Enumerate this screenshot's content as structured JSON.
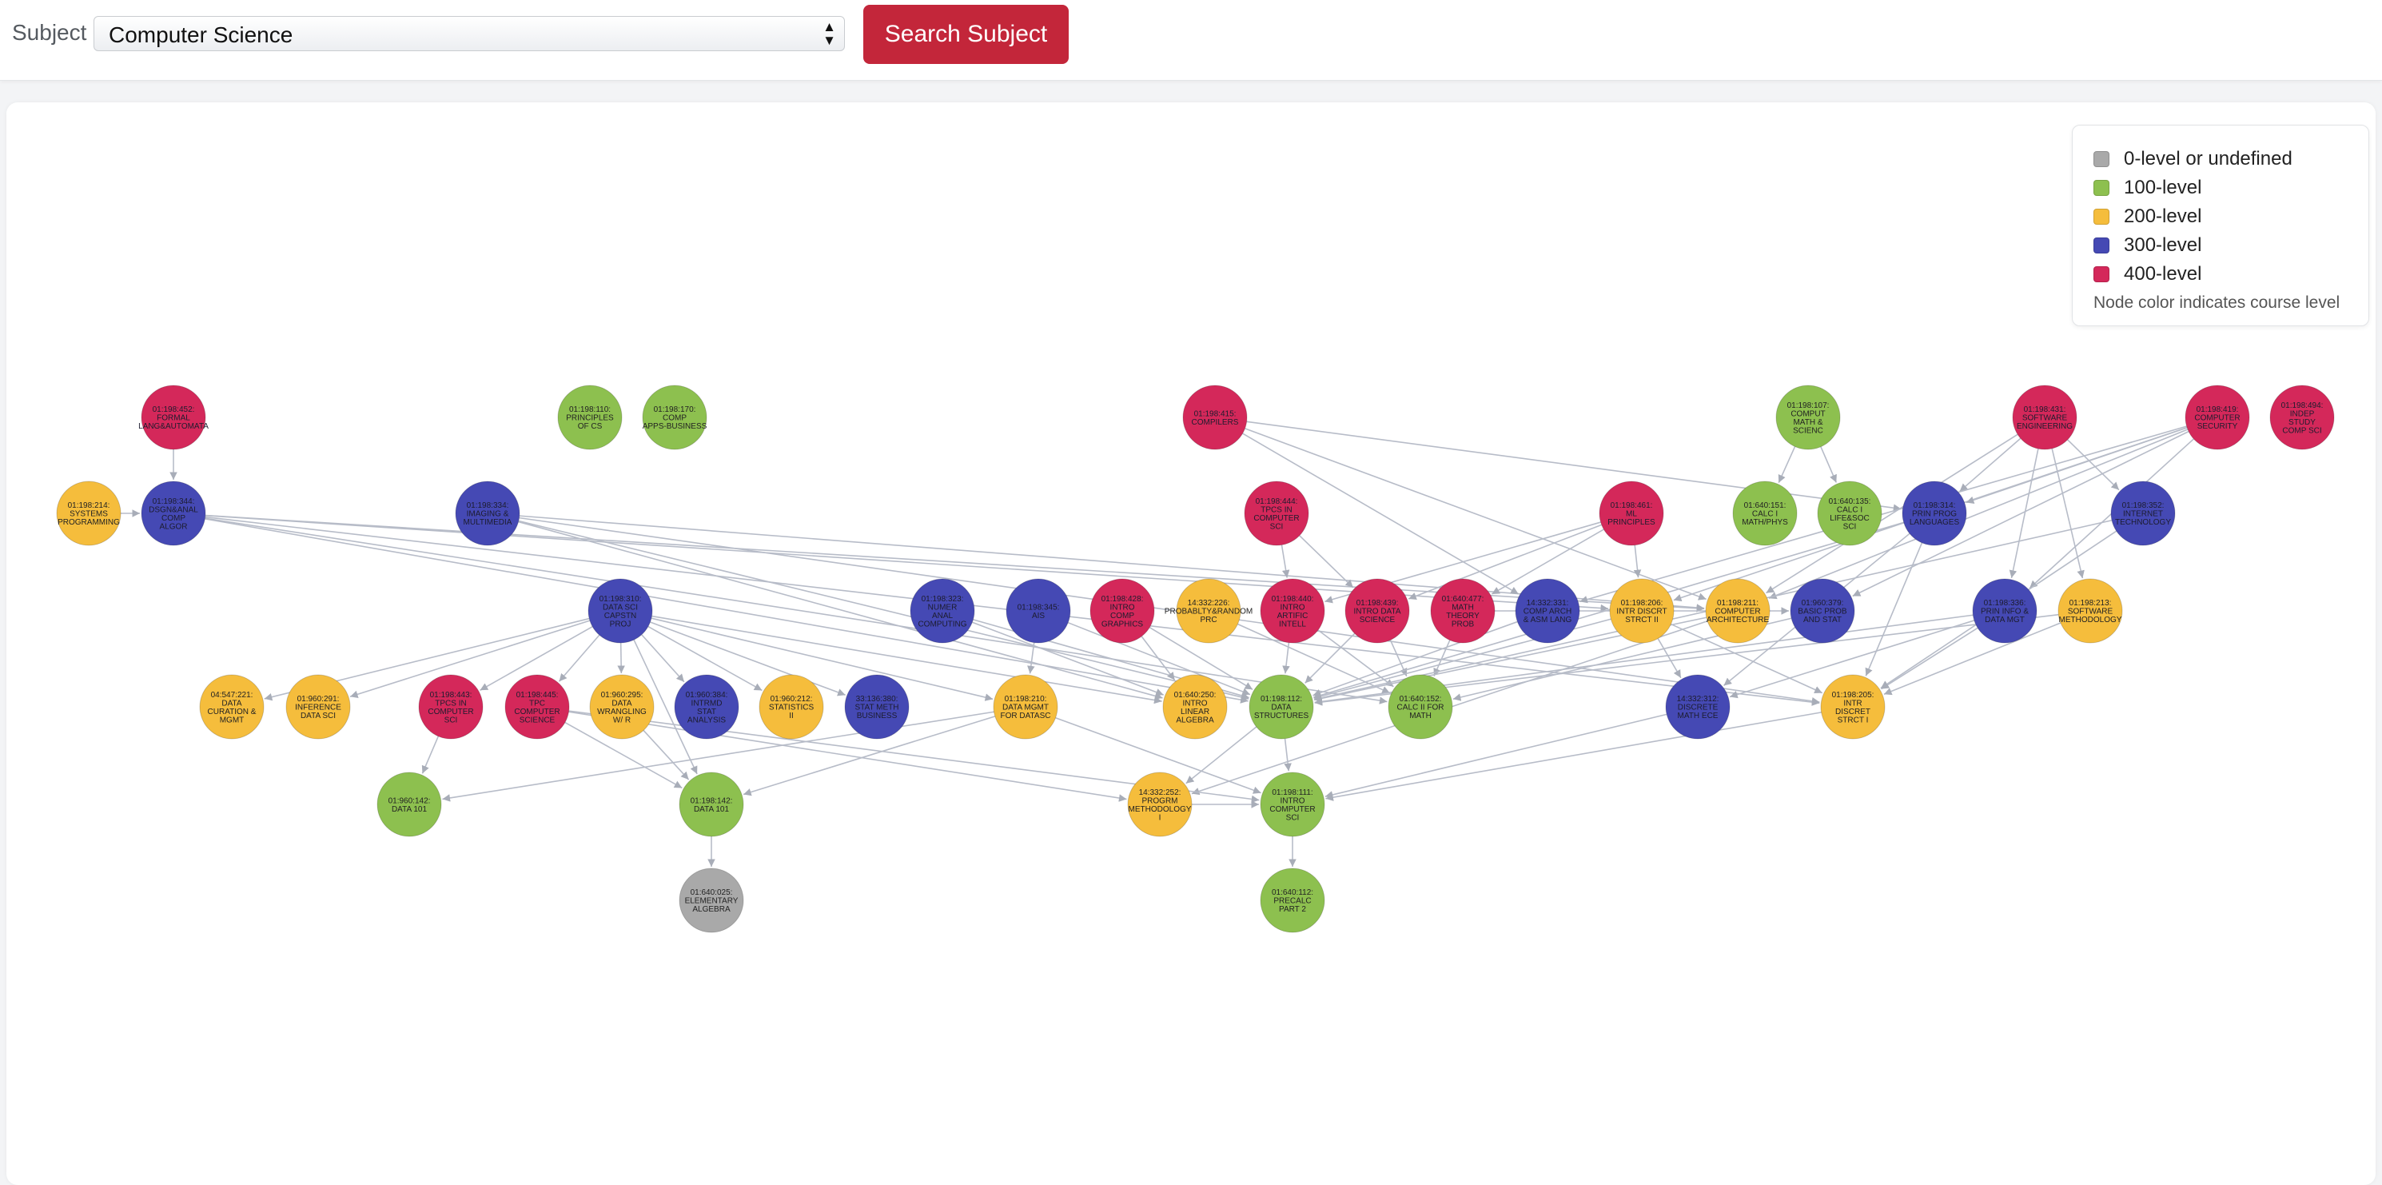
{
  "header": {
    "subject_label": "Subject",
    "subject_value": "Computer Science",
    "search_label": "Search Subject"
  },
  "legend": {
    "items": [
      {
        "label": "0-level or undefined",
        "color": "#a9a9a9"
      },
      {
        "label": "100-level",
        "color": "#8dc04f"
      },
      {
        "label": "200-level",
        "color": "#f5bd3c"
      },
      {
        "label": "300-level",
        "color": "#4549b4"
      },
      {
        "label": "400-level",
        "color": "#d4285a"
      }
    ],
    "note": "Node color indicates course level"
  },
  "graph": {
    "nodes": [
      {
        "id": "198452",
        "level": 4,
        "lines": [
          "01:198:452:",
          "FORMAL",
          "LANG&AUTOMATA"
        ]
      },
      {
        "id": "198110",
        "level": 1,
        "lines": [
          "01:198:110:",
          "PRINCIPLES",
          "OF CS"
        ]
      },
      {
        "id": "198170",
        "level": 1,
        "lines": [
          "01:198:170:",
          "COMP",
          "APPS-BUSINESS"
        ]
      },
      {
        "id": "198415",
        "level": 4,
        "lines": [
          "01:198:415:",
          "COMPILERS"
        ]
      },
      {
        "id": "198107",
        "level": 1,
        "lines": [
          "01:198:107:",
          "COMPUT",
          "MATH &",
          "SCIENC"
        ]
      },
      {
        "id": "198431",
        "level": 4,
        "lines": [
          "01:198:431:",
          "SOFTWARE",
          "ENGINEERING"
        ]
      },
      {
        "id": "198419",
        "level": 4,
        "lines": [
          "01:198:419:",
          "COMPUTER",
          "SECURITY"
        ]
      },
      {
        "id": "198494",
        "level": 4,
        "lines": [
          "01:198:494:",
          "INDEP",
          "STUDY",
          "COMP SCI"
        ]
      },
      {
        "id": "198214",
        "level": 2,
        "lines": [
          "01:198:214:",
          "SYSTEMS",
          "PROGRAMMING"
        ]
      },
      {
        "id": "198344",
        "level": 3,
        "lines": [
          "01:198:344:",
          "DSGN&ANAL",
          "COMP",
          "ALGOR"
        ]
      },
      {
        "id": "198334",
        "level": 3,
        "lines": [
          "01:198:334:",
          "IMAGING &",
          "MULTIMEDIA"
        ]
      },
      {
        "id": "198444",
        "level": 4,
        "lines": [
          "01:198:444:",
          "TPCS IN",
          "COMPUTER",
          "SCI"
        ]
      },
      {
        "id": "198461",
        "level": 4,
        "lines": [
          "01:198:461:",
          "ML",
          "PRINCIPLES"
        ]
      },
      {
        "id": "640151",
        "level": 1,
        "lines": [
          "01:640:151:",
          "CALC I",
          "MATH/PHYS"
        ]
      },
      {
        "id": "640135",
        "level": 1,
        "lines": [
          "01:640:135:",
          "CALC I",
          "LIFE&SOC",
          "SCI"
        ]
      },
      {
        "id": "198314",
        "level": 3,
        "lines": [
          "01:198:314:",
          "PRIN PROG",
          "LANGUAGES"
        ]
      },
      {
        "id": "198352",
        "level": 3,
        "lines": [
          "01:198:352:",
          "INTERNET",
          "TECHNOLOGY"
        ]
      },
      {
        "id": "198310",
        "level": 3,
        "lines": [
          "01:198:310:",
          "DATA SCI",
          "CAPSTN",
          "PROJ"
        ]
      },
      {
        "id": "198323",
        "level": 3,
        "lines": [
          "01:198:323:",
          "NUMER",
          "ANAL",
          "COMPUTING"
        ]
      },
      {
        "id": "198345",
        "level": 3,
        "lines": [
          "01:198:345:",
          "AIS"
        ]
      },
      {
        "id": "198428",
        "level": 4,
        "lines": [
          "01:198:428:",
          "INTRO",
          "COMP",
          "GRAPHICS"
        ]
      },
      {
        "id": "332226",
        "level": 2,
        "lines": [
          "14:332:226:",
          "PROBABLTY&RANDOM",
          "PRC"
        ]
      },
      {
        "id": "198440",
        "level": 4,
        "lines": [
          "01:198:440:",
          "INTRO",
          "ARTIFIC",
          "INTELL"
        ]
      },
      {
        "id": "198439",
        "level": 4,
        "lines": [
          "01:198:439:",
          "INTRO DATA",
          "SCIENCE"
        ]
      },
      {
        "id": "640477",
        "level": 4,
        "lines": [
          "01:640:477:",
          "MATH",
          "THEORY",
          "PROB"
        ]
      },
      {
        "id": "332331",
        "level": 3,
        "lines": [
          "14:332:331:",
          "COMP ARCH",
          "& ASM LANG"
        ]
      },
      {
        "id": "198206",
        "level": 2,
        "lines": [
          "01:198:206:",
          "INTR DISCRT",
          "STRCT II"
        ]
      },
      {
        "id": "198211",
        "level": 2,
        "lines": [
          "01:198:211:",
          "COMPUTER",
          "ARCHITECTURE"
        ]
      },
      {
        "id": "960379",
        "level": 3,
        "lines": [
          "01:960:379:",
          "BASIC PROB",
          "AND STAT"
        ]
      },
      {
        "id": "198336",
        "level": 3,
        "lines": [
          "01:198:336:",
          "PRIN INFO &",
          "DATA MGT"
        ]
      },
      {
        "id": "198213",
        "level": 2,
        "lines": [
          "01:198:213:",
          "SOFTWARE",
          "METHODOLOGY"
        ]
      },
      {
        "id": "547221",
        "level": 2,
        "lines": [
          "04:547:221:",
          "DATA",
          "CURATION &",
          "MGMT"
        ]
      },
      {
        "id": "960291",
        "level": 2,
        "lines": [
          "01:960:291:",
          "INFERENCE",
          "DATA SCI"
        ]
      },
      {
        "id": "198443",
        "level": 4,
        "lines": [
          "01:198:443:",
          "TPCS IN",
          "COMPUTER",
          "SCI"
        ]
      },
      {
        "id": "198445",
        "level": 4,
        "lines": [
          "01:198:445:",
          "TPC",
          "COMPUTER",
          "SCIENCE"
        ]
      },
      {
        "id": "960295",
        "level": 2,
        "lines": [
          "01:960:295:",
          "DATA",
          "WRANGLING",
          "W/ R"
        ]
      },
      {
        "id": "960384",
        "level": 3,
        "lines": [
          "01:960:384:",
          "INTRMD",
          "STAT",
          "ANALYSIS"
        ]
      },
      {
        "id": "960212",
        "level": 2,
        "lines": [
          "01:960:212:",
          "STATISTICS",
          "II"
        ]
      },
      {
        "id": "136380",
        "level": 3,
        "lines": [
          "33:136:380:",
          "STAT METH",
          "BUSINESS"
        ]
      },
      {
        "id": "198210",
        "level": 2,
        "lines": [
          "01:198:210:",
          "DATA MGMT",
          "FOR DATASC"
        ]
      },
      {
        "id": "640250",
        "level": 2,
        "lines": [
          "01:640:250:",
          "INTRO",
          "LINEAR",
          "ALGEBRA"
        ]
      },
      {
        "id": "198112",
        "level": 1,
        "lines": [
          "01:198:112:",
          "DATA",
          "STRUCTURES"
        ]
      },
      {
        "id": "640152",
        "level": 1,
        "lines": [
          "01:640:152:",
          "CALC II FOR",
          "MATH"
        ]
      },
      {
        "id": "332312",
        "level": 3,
        "lines": [
          "14:332:312:",
          "DISCRETE",
          "MATH ECE"
        ]
      },
      {
        "id": "198205",
        "level": 2,
        "lines": [
          "01:198:205:",
          "INTR",
          "DISCRET",
          "STRCT I"
        ]
      },
      {
        "id": "960142a",
        "level": 1,
        "lines": [
          "01:960:142:",
          "DATA 101"
        ]
      },
      {
        "id": "198142",
        "level": 1,
        "lines": [
          "01:198:142:",
          "DATA 101"
        ]
      },
      {
        "id": "332252",
        "level": 2,
        "lines": [
          "14:332:252:",
          "PROGRM",
          "METHODOLOGY",
          "I"
        ]
      },
      {
        "id": "198111",
        "level": 1,
        "lines": [
          "01:198:111:",
          "INTRO",
          "COMPUTER",
          "SCI"
        ]
      },
      {
        "id": "640025",
        "level": 0,
        "lines": [
          "01:640:025:",
          "ELEMENTARY",
          "ALGEBRA"
        ]
      },
      {
        "id": "640112",
        "level": 1,
        "lines": [
          "01:640:112:",
          "PRECALC",
          "PART 2"
        ]
      }
    ],
    "edges": [
      [
        "198452",
        "198344"
      ],
      [
        "198344",
        "198112"
      ],
      [
        "198344",
        "198205"
      ],
      [
        "198344",
        "198206"
      ],
      [
        "198344",
        "640152"
      ],
      [
        "198344",
        "198211"
      ],
      [
        "198214",
        "198344"
      ],
      [
        "198334",
        "198112"
      ],
      [
        "198334",
        "640250"
      ],
      [
        "198334",
        "198205"
      ],
      [
        "198334",
        "198211"
      ],
      [
        "198310",
        "960291"
      ],
      [
        "198310",
        "198443"
      ],
      [
        "198310",
        "198445"
      ],
      [
        "198310",
        "960295"
      ],
      [
        "198310",
        "960384"
      ],
      [
        "198310",
        "960212"
      ],
      [
        "198310",
        "136380"
      ],
      [
        "198310",
        "198210"
      ],
      [
        "198310",
        "198142"
      ],
      [
        "198310",
        "547221"
      ],
      [
        "198310",
        "640250"
      ],
      [
        "198415",
        "198211"
      ],
      [
        "198415",
        "198314"
      ],
      [
        "198415",
        "332331"
      ],
      [
        "198107",
        "640151"
      ],
      [
        "198107",
        "640135"
      ],
      [
        "198431",
        "198336"
      ],
      [
        "198431",
        "198213"
      ],
      [
        "198431",
        "198211"
      ],
      [
        "198431",
        "198352"
      ],
      [
        "198431",
        "198314"
      ],
      [
        "198419",
        "198336"
      ],
      [
        "198419",
        "198206"
      ],
      [
        "198419",
        "198211"
      ],
      [
        "198419",
        "960379"
      ],
      [
        "198419",
        "332331"
      ],
      [
        "198419",
        "198314"
      ],
      [
        "198444",
        "198440"
      ],
      [
        "198444",
        "198439"
      ],
      [
        "198461",
        "198440"
      ],
      [
        "198461",
        "198206"
      ],
      [
        "198461",
        "640477"
      ],
      [
        "198461",
        "198439"
      ],
      [
        "198323",
        "198112"
      ],
      [
        "198323",
        "640250"
      ],
      [
        "198345",
        "198210"
      ],
      [
        "198345",
        "198112"
      ],
      [
        "198428",
        "640250"
      ],
      [
        "198428",
        "198112"
      ],
      [
        "332226",
        "640152"
      ],
      [
        "198440",
        "198112"
      ],
      [
        "198440",
        "640152"
      ],
      [
        "198439",
        "640152"
      ],
      [
        "198439",
        "198112"
      ],
      [
        "640477",
        "640152"
      ],
      [
        "640477",
        "960379"
      ],
      [
        "332331",
        "198112"
      ],
      [
        "198206",
        "198205"
      ],
      [
        "198206",
        "332312"
      ],
      [
        "198206",
        "198112"
      ],
      [
        "198211",
        "198112"
      ],
      [
        "198211",
        "332252"
      ],
      [
        "960379",
        "640152"
      ],
      [
        "198336",
        "198112"
      ],
      [
        "198336",
        "198205"
      ],
      [
        "198336",
        "332312"
      ],
      [
        "198213",
        "198112"
      ],
      [
        "198213",
        "198205"
      ],
      [
        "198314",
        "198205"
      ],
      [
        "198314",
        "332312"
      ],
      [
        "198314",
        "198112"
      ],
      [
        "198352",
        "198112"
      ],
      [
        "198352",
        "198205"
      ],
      [
        "198443",
        "960142a"
      ],
      [
        "198445",
        "198142"
      ],
      [
        "198445",
        "198111"
      ],
      [
        "198445",
        "332252"
      ],
      [
        "960295",
        "198142"
      ],
      [
        "198210",
        "198142"
      ],
      [
        "198210",
        "960142a"
      ],
      [
        "198210",
        "198111"
      ],
      [
        "198112",
        "198111"
      ],
      [
        "198112",
        "332252"
      ],
      [
        "198205",
        "198111"
      ],
      [
        "332312",
        "198111"
      ],
      [
        "198142",
        "640025"
      ],
      [
        "198111",
        "640112"
      ],
      [
        "332252",
        "198111"
      ]
    ]
  }
}
